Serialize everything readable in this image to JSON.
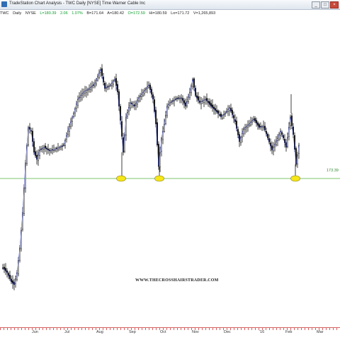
{
  "window": {
    "title": "TradeStation Chart Analysis - TWC Daily [NYSE] Time Warner Cable Inc"
  },
  "infobar": {
    "symbol": "TWC",
    "interval": "Daily",
    "exchange": "NYSE",
    "last": "L=180.39",
    "change": "2.06",
    "change_pct": "1.07%",
    "bid": "B=171.64",
    "ask": "A=180.42",
    "open": "O=172.59",
    "high": "Hi=180.59",
    "low": "Lo=171.72",
    "volume": "V=1,265,893"
  },
  "chart": {
    "support_level": "173.39",
    "support_color": "#7cc66c",
    "marker_color": "#f5e61a",
    "watermark": "WWW.THECROSSHAIRSTRADER.COM",
    "x_axis_labels": [
      "Jun",
      "Jul",
      "Aug",
      "Sep",
      "Oct",
      "Nov",
      "Dec",
      "'16",
      "Feb",
      "Mar"
    ]
  }
}
